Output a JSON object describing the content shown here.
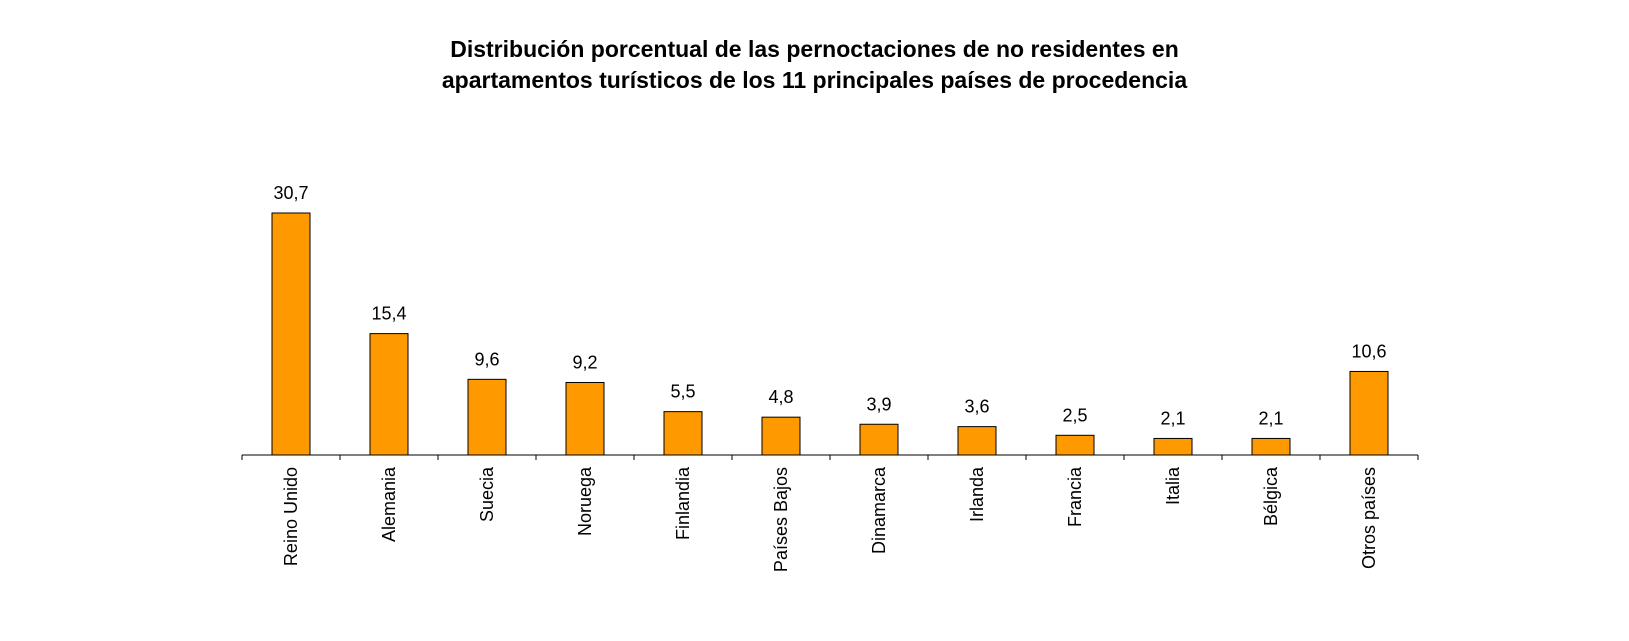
{
  "chart_data": {
    "type": "bar",
    "title_lines": [
      "Distribución porcentual de las pernoctaciones de no residentes en",
      "apartamentos turísticos de los 11 principales países de procedencia"
    ],
    "categories": [
      "Reino Unido",
      "Alemania",
      "Suecia",
      "Noruega",
      "Finlandia",
      "Países Bajos",
      "Dinamarca",
      "Irlanda",
      "Francia",
      "Italia",
      "Bélgica",
      "Otros países"
    ],
    "values": [
      30.7,
      15.4,
      9.6,
      9.2,
      5.5,
      4.8,
      3.9,
      3.6,
      2.5,
      2.1,
      2.1,
      10.6
    ],
    "value_labels": [
      "30,7",
      "15,4",
      "9,6",
      "9,2",
      "5,5",
      "4,8",
      "3,9",
      "3,6",
      "2,5",
      "2,1",
      "2,1",
      "10,6"
    ],
    "ylim": [
      0,
      30.7
    ],
    "grid": false,
    "legend": "none",
    "bar_color": "#FF9900",
    "bar_stroke": "#000000",
    "xlabel": "",
    "ylabel": ""
  }
}
